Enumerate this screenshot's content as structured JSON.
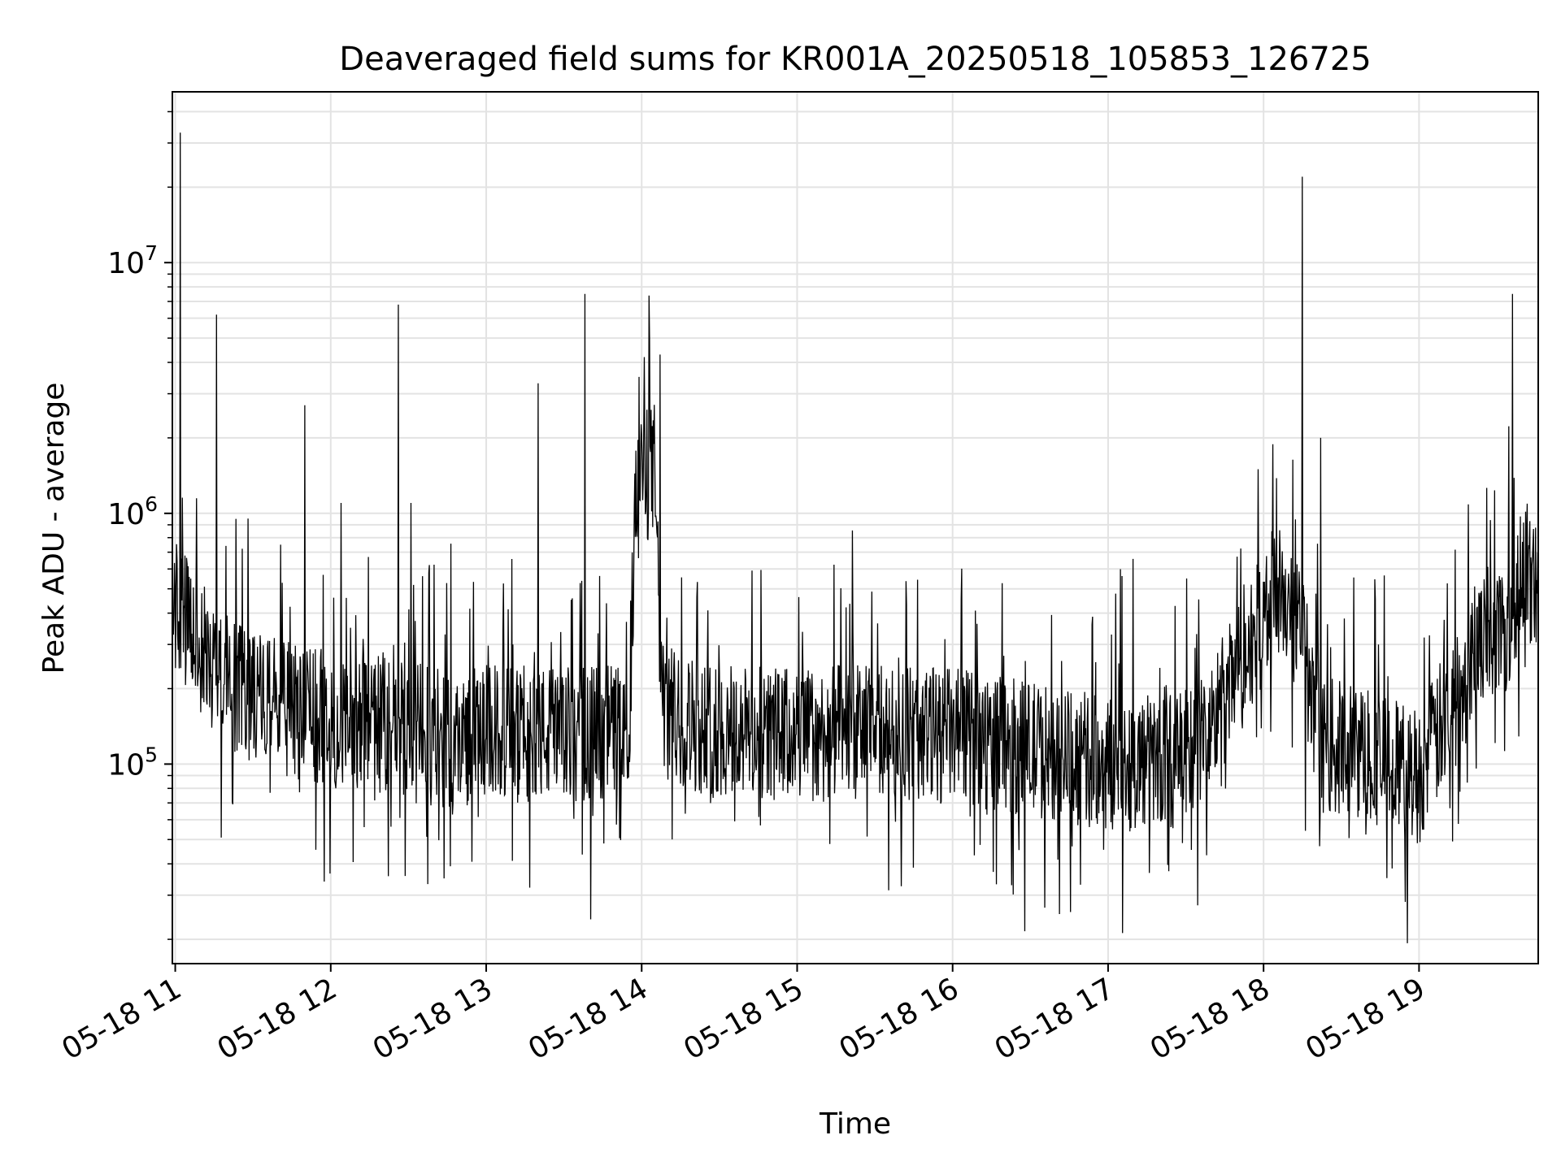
{
  "chart_data": {
    "type": "line",
    "title": "Deaveraged field sums for KR001A_20250518_105853_126725",
    "xlabel": "Time",
    "ylabel": "Peak ADU - average",
    "x_scale": "time",
    "y_scale": "log",
    "xlim": [
      "2025-05-18T10:58:53",
      "2025-05-18T19:46:00"
    ],
    "ylim": [
      16000,
      48000000
    ],
    "grid": true,
    "x_ticks": [
      {
        "t": "2025-05-18T11:00",
        "label": "05-18 11"
      },
      {
        "t": "2025-05-18T12:00",
        "label": "05-18 12"
      },
      {
        "t": "2025-05-18T13:00",
        "label": "05-18 13"
      },
      {
        "t": "2025-05-18T14:00",
        "label": "05-18 14"
      },
      {
        "t": "2025-05-18T15:00",
        "label": "05-18 15"
      },
      {
        "t": "2025-05-18T16:00",
        "label": "05-18 16"
      },
      {
        "t": "2025-05-18T17:00",
        "label": "05-18 17"
      },
      {
        "t": "2025-05-18T18:00",
        "label": "05-18 18"
      },
      {
        "t": "2025-05-18T19:00",
        "label": "05-18 19"
      }
    ],
    "y_ticks": [
      {
        "value": 100000,
        "base": "10",
        "exp": "5"
      },
      {
        "value": 1000000,
        "base": "10",
        "exp": "6"
      },
      {
        "value": 10000000,
        "base": "10",
        "exp": "7"
      }
    ],
    "line_color": "#000000",
    "series": [
      {
        "baseline": [
          {
            "t": "2025-05-18T10:58:53",
            "y": 450000
          },
          {
            "t": "2025-05-18T11:03",
            "y": 380000
          },
          {
            "t": "2025-05-18T11:10",
            "y": 280000
          },
          {
            "t": "2025-05-18T11:20",
            "y": 220000
          },
          {
            "t": "2025-05-18T11:30",
            "y": 190000
          },
          {
            "t": "2025-05-18T11:40",
            "y": 170000
          },
          {
            "t": "2025-05-18T12:00",
            "y": 150000
          },
          {
            "t": "2025-05-18T12:30",
            "y": 140000
          },
          {
            "t": "2025-05-18T12:45",
            "y": 120000
          },
          {
            "t": "2025-05-18T13:00",
            "y": 135000
          },
          {
            "t": "2025-05-18T13:30",
            "y": 130000
          },
          {
            "t": "2025-05-18T13:55",
            "y": 140000
          },
          {
            "t": "2025-05-18T13:58",
            "y": 1300000
          },
          {
            "t": "2025-05-18T14:05",
            "y": 1500000
          },
          {
            "t": "2025-05-18T14:08",
            "y": 160000
          },
          {
            "t": "2025-05-18T14:30",
            "y": 135000
          },
          {
            "t": "2025-05-18T15:00",
            "y": 130000
          },
          {
            "t": "2025-05-18T15:30",
            "y": 135000
          },
          {
            "t": "2025-05-18T16:00",
            "y": 130000
          },
          {
            "t": "2025-05-18T16:30",
            "y": 115000
          },
          {
            "t": "2025-05-18T17:00",
            "y": 100000
          },
          {
            "t": "2025-05-18T17:30",
            "y": 105000
          },
          {
            "t": "2025-05-18T17:40",
            "y": 140000
          },
          {
            "t": "2025-05-18T17:55",
            "y": 300000
          },
          {
            "t": "2025-05-18T18:05",
            "y": 500000
          },
          {
            "t": "2025-05-18T18:15",
            "y": 350000
          },
          {
            "t": "2025-05-18T18:20",
            "y": 120000
          },
          {
            "t": "2025-05-18T18:40",
            "y": 110000
          },
          {
            "t": "2025-05-18T19:00",
            "y": 90000
          },
          {
            "t": "2025-05-18T19:10",
            "y": 150000
          },
          {
            "t": "2025-05-18T19:20",
            "y": 280000
          },
          {
            "t": "2025-05-18T19:35",
            "y": 380000
          },
          {
            "t": "2025-05-18T19:40",
            "y": 650000
          },
          {
            "t": "2025-05-18T19:46",
            "y": 480000
          }
        ],
        "spikes": [
          {
            "t": "2025-05-18T11:02",
            "y": 33000000
          },
          {
            "t": "2025-05-18T11:16",
            "y": 6200000
          },
          {
            "t": "2025-05-18T11:50",
            "y": 2700000
          },
          {
            "t": "2025-05-18T12:04",
            "y": 1100000
          },
          {
            "t": "2025-05-18T12:26",
            "y": 6800000
          },
          {
            "t": "2025-05-18T12:31",
            "y": 1100000
          },
          {
            "t": "2025-05-18T13:20",
            "y": 3300000
          },
          {
            "t": "2025-05-18T13:38",
            "y": 7500000
          },
          {
            "t": "2025-05-18T13:59",
            "y": 3500000
          },
          {
            "t": "2025-05-18T14:01",
            "y": 4200000
          },
          {
            "t": "2025-05-18T14:03",
            "y": 5000000
          },
          {
            "t": "2025-05-18T14:07",
            "y": 4300000
          },
          {
            "t": "2025-05-18T17:58",
            "y": 1500000
          },
          {
            "t": "2025-05-18T18:15",
            "y": 22000000
          },
          {
            "t": "2025-05-18T18:22",
            "y": 2000000
          },
          {
            "t": "2025-05-18T19:36",
            "y": 7500000
          }
        ]
      }
    ]
  }
}
